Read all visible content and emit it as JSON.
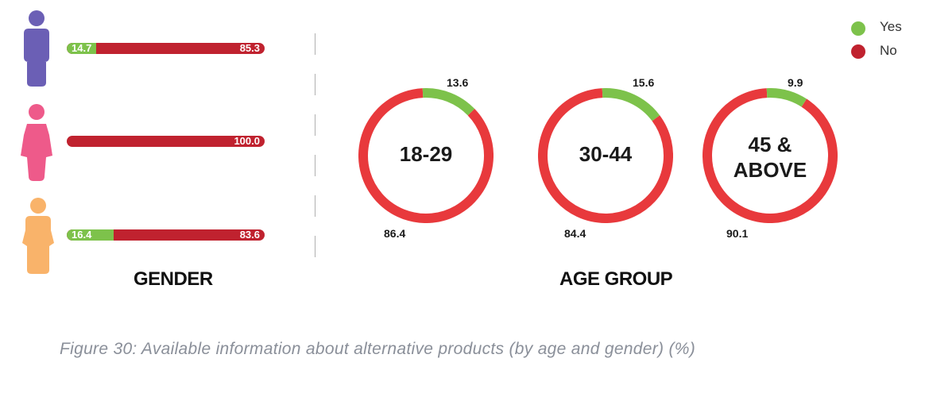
{
  "legend": {
    "items": [
      {
        "label": "Yes",
        "color": "#7dc24b"
      },
      {
        "label": "No",
        "color": "#c0222f"
      }
    ]
  },
  "gender": {
    "title": "GENDER",
    "rows": [
      {
        "icon": "male-person-icon",
        "color": "#6b5fb5",
        "yes": 14.7,
        "no": 85.3,
        "yes_label": "14.7",
        "no_label": "85.3"
      },
      {
        "icon": "female-person-icon",
        "color": "#ee5a8a",
        "yes": 0.0,
        "no": 100.0,
        "yes_label": "",
        "no_label": "100.0"
      },
      {
        "icon": "other-person-icon",
        "color": "#f9b36a",
        "yes": 16.4,
        "no": 83.6,
        "yes_label": "16.4",
        "no_label": "83.6"
      }
    ]
  },
  "age_group": {
    "title": "AGE GROUP",
    "donuts": [
      {
        "label": "18-29",
        "yes": 13.6,
        "no": 86.4,
        "yes_label": "13.6",
        "no_label": "86.4"
      },
      {
        "label": "30-44",
        "yes": 15.6,
        "no": 84.4,
        "yes_label": "15.6",
        "no_label": "84.4"
      },
      {
        "label": "45 & ABOVE",
        "yes": 9.9,
        "no": 90.1,
        "yes_label": "9.9",
        "no_label": "90.1"
      }
    ]
  },
  "caption": "Figure 30: Available information about alternative products (by age and gender) (%)",
  "chart_data": [
    {
      "type": "bar",
      "title": "GENDER",
      "categories": [
        "Male",
        "Female",
        "Other"
      ],
      "series": [
        {
          "name": "Yes",
          "values": [
            14.7,
            0.0,
            16.4
          ]
        },
        {
          "name": "No",
          "values": [
            85.3,
            100.0,
            83.6
          ]
        }
      ]
    },
    {
      "type": "pie",
      "title": "AGE GROUP",
      "categories": [
        "18-29",
        "30-44",
        "45 & ABOVE"
      ],
      "series": [
        {
          "name": "Yes",
          "values": [
            13.6,
            15.6,
            9.9
          ]
        },
        {
          "name": "No",
          "values": [
            86.4,
            84.4,
            90.1
          ]
        }
      ]
    }
  ]
}
